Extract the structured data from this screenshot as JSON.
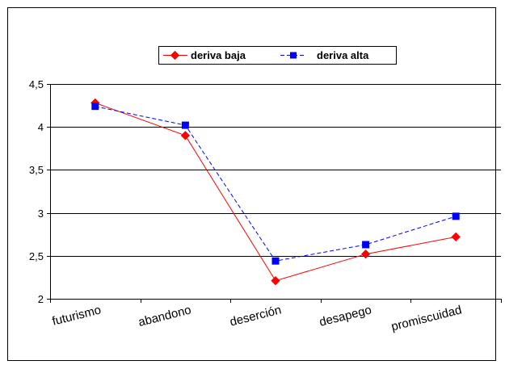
{
  "chart_data": {
    "type": "line",
    "categories": [
      "futurismo",
      "abandono",
      "deserción",
      "desapego",
      "promiscuidad"
    ],
    "series": [
      {
        "name": "deriva baja",
        "values": [
          4.28,
          3.9,
          2.21,
          2.52,
          2.72
        ],
        "color": "#ff0000",
        "line": "solid",
        "marker": "diamond"
      },
      {
        "name": "deriva alta",
        "values": [
          4.24,
          4.02,
          2.44,
          2.63,
          2.96
        ],
        "color": "#0000ff",
        "line": "dashed",
        "marker": "square"
      }
    ],
    "ylim": [
      2,
      4.5
    ],
    "yticks": [
      "2",
      "2,5",
      "3",
      "3,5",
      "4",
      "4,5"
    ],
    "grid": "horizontal",
    "legend": "top",
    "title": "",
    "xlabel": "",
    "ylabel": ""
  }
}
